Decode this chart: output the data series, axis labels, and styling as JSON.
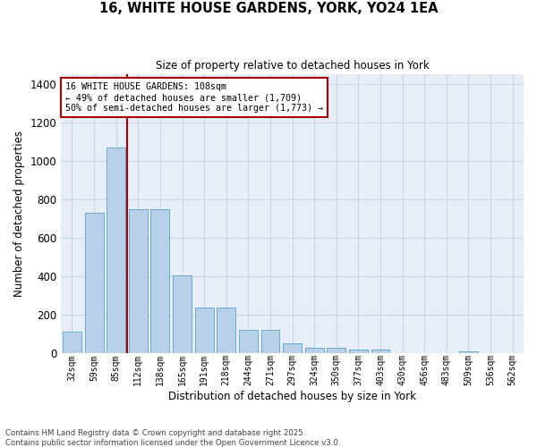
{
  "title_line1": "16, WHITE HOUSE GARDENS, YORK, YO24 1EA",
  "title_line2": "Size of property relative to detached houses in York",
  "xlabel": "Distribution of detached houses by size in York",
  "ylabel": "Number of detached properties",
  "categories": [
    "32sqm",
    "59sqm",
    "85sqm",
    "112sqm",
    "138sqm",
    "165sqm",
    "191sqm",
    "218sqm",
    "244sqm",
    "271sqm",
    "297sqm",
    "324sqm",
    "350sqm",
    "377sqm",
    "403sqm",
    "430sqm",
    "456sqm",
    "483sqm",
    "509sqm",
    "536sqm",
    "562sqm"
  ],
  "values": [
    110,
    730,
    1070,
    750,
    750,
    405,
    235,
    235,
    120,
    120,
    50,
    25,
    25,
    20,
    20,
    0,
    0,
    0,
    10,
    0,
    0
  ],
  "bar_color": "#b8d0e8",
  "bar_edge_color": "#6aabd2",
  "grid_color": "#c8d4e8",
  "background_color": "#e8eef8",
  "vline_x_index": 3,
  "vline_color": "#aa0000",
  "annotation_text": "16 WHITE HOUSE GARDENS: 108sqm\n← 49% of detached houses are smaller (1,709)\n50% of semi-detached houses are larger (1,773) →",
  "annotation_box_edgecolor": "#aa0000",
  "ylim": [
    0,
    1450
  ],
  "yticks": [
    0,
    200,
    400,
    600,
    800,
    1000,
    1200,
    1400
  ],
  "footer_line1": "Contains HM Land Registry data © Crown copyright and database right 2025.",
  "footer_line2": "Contains public sector information licensed under the Open Government Licence v3.0."
}
